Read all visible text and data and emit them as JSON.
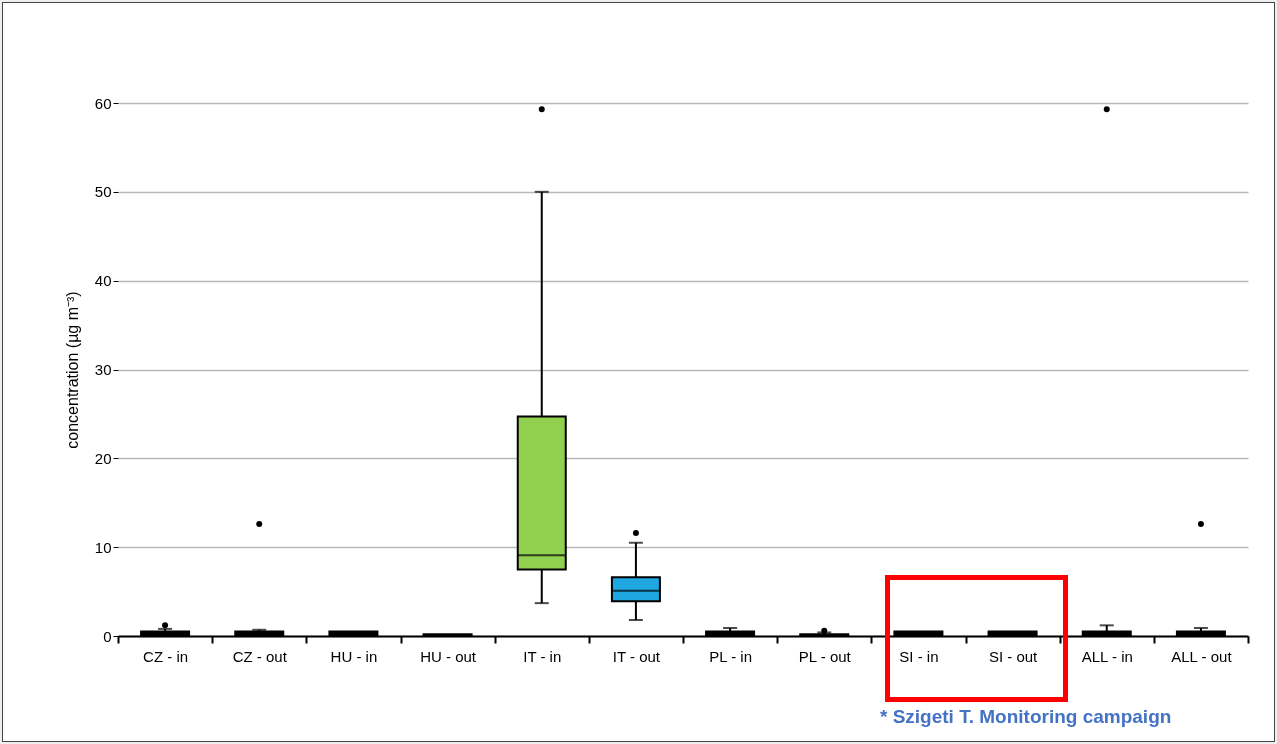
{
  "chart_data": {
    "type": "box",
    "ylabel": "concentration (µg m⁻³)",
    "categories": [
      "CZ - in",
      "CZ - out",
      "HU - in",
      "HU - out",
      "IT - in",
      "IT - out",
      "PL  - in",
      "PL - out",
      "SI - in",
      "SI - out",
      "ALL - in",
      "ALL - out"
    ],
    "colors": [
      "#000000",
      "#000000",
      "#000000",
      "#000000",
      "#92d050",
      "#1ea7e1",
      "#000000",
      "#000000",
      "#000000",
      "#000000",
      "#000000",
      "#000000"
    ],
    "boxes": [
      {
        "low": 0,
        "q1": 0.1,
        "median": 0.2,
        "q3": 0.5,
        "high": 0.8,
        "outliers": [
          1.2
        ]
      },
      {
        "low": 0,
        "q1": 0.1,
        "median": 0.2,
        "q3": 0.5,
        "high": 0.7,
        "outliers": [
          12.6
        ]
      },
      {
        "low": 0,
        "q1": 0.1,
        "median": 0.2,
        "q3": 0.5,
        "high": 0.5
      },
      {
        "low": 0,
        "q1": 0.05,
        "median": 0.1,
        "q3": 0.2,
        "high": 0.2
      },
      {
        "low": 3.7,
        "q1": 7.5,
        "median": 9.1,
        "q3": 24.7,
        "high": 50,
        "outliers": [
          59.3
        ]
      },
      {
        "low": 1.8,
        "q1": 3.9,
        "median": 5.1,
        "q3": 6.6,
        "high": 10.5,
        "outliers": [
          11.6
        ]
      },
      {
        "low": 0,
        "q1": 0.1,
        "median": 0.2,
        "q3": 0.5,
        "high": 0.9
      },
      {
        "low": 0,
        "q1": 0.05,
        "median": 0.1,
        "q3": 0.2,
        "high": 0.4,
        "outliers": [
          0.6
        ]
      },
      {
        "low": 0,
        "q1": 0.1,
        "median": 0.2,
        "q3": 0.5,
        "high": 0.5
      },
      {
        "low": 0,
        "q1": 0.1,
        "median": 0.2,
        "q3": 0.5,
        "high": 0.5
      },
      {
        "low": 0,
        "q1": 0.1,
        "median": 0.2,
        "q3": 0.5,
        "high": 1.2,
        "outliers": [
          59.3
        ]
      },
      {
        "low": 0,
        "q1": 0.1,
        "median": 0.2,
        "q3": 0.5,
        "high": 0.9,
        "outliers": [
          12.6
        ]
      }
    ],
    "ylim": [
      0,
      60
    ],
    "yticks": [
      0,
      10,
      20,
      30,
      40,
      50,
      60
    ],
    "grid": "y",
    "legend": false,
    "annotations": [
      "* Szigeti T. Monitoring campaign"
    ]
  }
}
